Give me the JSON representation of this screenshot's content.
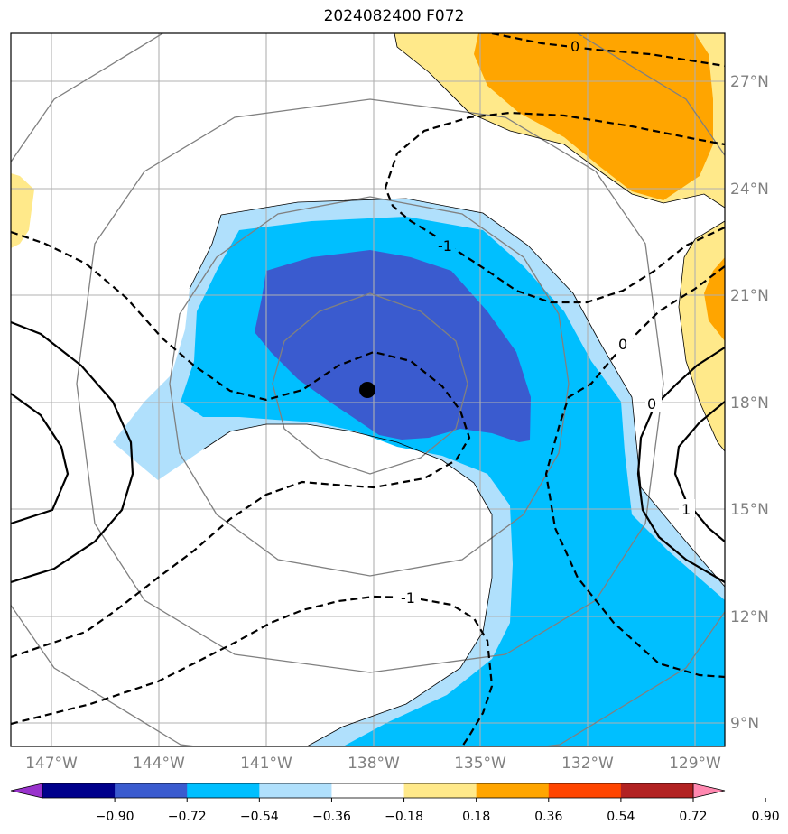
{
  "title": "2024082400 F072",
  "map": {
    "lon_ticks": [
      "147°W",
      "144°W",
      "141°W",
      "138°W",
      "135°W",
      "132°W",
      "129°W"
    ],
    "lat_ticks": [
      "27°N",
      "24°N",
      "21°N",
      "18°N",
      "15°N",
      "12°N",
      "9°N"
    ],
    "center_marker": {
      "lon": -138.2,
      "lat": 18.4
    },
    "contour_labels": [
      {
        "text": "0"
      },
      {
        "text": "-1"
      },
      {
        "text": "0"
      },
      {
        "text": "0"
      },
      {
        "text": "1"
      },
      {
        "text": "-1"
      }
    ]
  },
  "colorbar": {
    "labels": [
      "−0.90",
      "−0.72",
      "−0.54",
      "−0.36",
      "−0.18",
      "0.18",
      "0.36",
      "0.54",
      "0.72",
      "0.90"
    ],
    "colors": [
      "#9932cc",
      "#00008b",
      "#3a5bcf",
      "#00bfff",
      "#b0e0fc",
      "#ffffff",
      "#ffe98a",
      "#ffa500",
      "#ff4500",
      "#b22222",
      "#ff88b0"
    ]
  },
  "shading_colors": {
    "light_blue": "#b0e0fc",
    "deep_sky_blue": "#00bfff",
    "royal_blue": "#3a5bcf",
    "light_yellow": "#ffe98a",
    "orange": "#ffa500"
  }
}
